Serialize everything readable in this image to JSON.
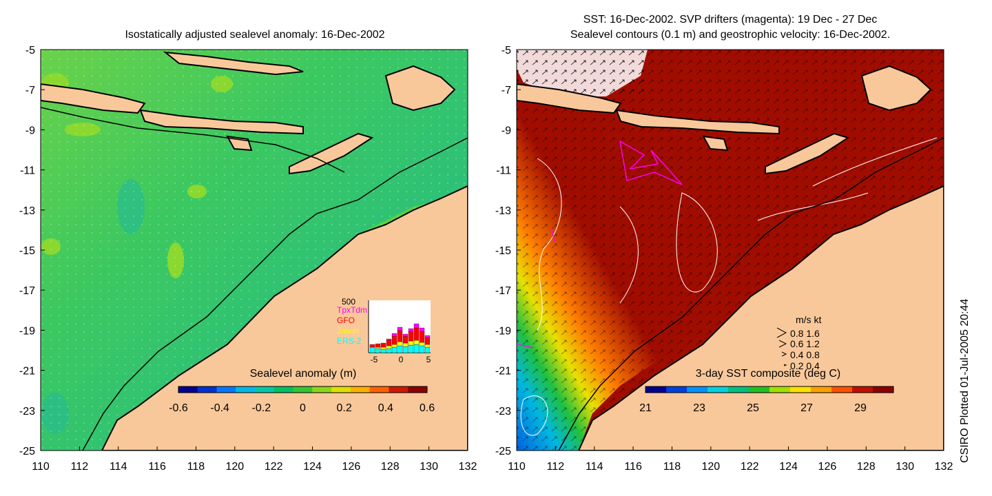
{
  "left_panel": {
    "title": "Isostatically adjusted sealevel anomaly: 16-Dec-2002",
    "colorbar": {
      "label": "Sealevel anomaly (m)",
      "ticks": [
        "-0.6",
        "-0.4",
        "-0.2",
        "0",
        "0.2",
        "0.4",
        "0.6"
      ],
      "colors": [
        "#00008f",
        "#0030d0",
        "#0078ff",
        "#00b8e8",
        "#00c8a8",
        "#00c060",
        "#30c830",
        "#88d818",
        "#e0e000",
        "#ffb000",
        "#ff6000",
        "#d01800",
        "#8b0000"
      ]
    },
    "inset": {
      "ymax_label": "500",
      "legend": [
        "TpxTdm",
        "GFO",
        "Jason",
        "ERS-2"
      ],
      "legend_colors": [
        "#ff00ff",
        "#ff0000",
        "#ffff00",
        "#00ffff"
      ],
      "x_ticks": [
        "-5",
        "0",
        "5"
      ]
    }
  },
  "right_panel": {
    "title_line1": "SST: 16-Dec-2002. SVP drifters (magenta): 19 Dec - 27 Dec",
    "title_line2": "Sealevel contours (0.1 m) and geostrophic velocity: 16-Dec-2002.",
    "colorbar": {
      "label": "3-day SST composite (deg C)",
      "ticks": [
        "21",
        "23",
        "25",
        "27",
        "29"
      ],
      "colors": [
        "#00008f",
        "#0040e0",
        "#0090ff",
        "#00d0e0",
        "#00c080",
        "#20c020",
        "#a0e000",
        "#ffe000",
        "#ffa000",
        "#ff5000",
        "#c01000",
        "#8b0000"
      ]
    },
    "velocity_legend": {
      "header": "m/s  kt",
      "rows": [
        "0.8  1.6",
        "0.6  1.2",
        "0.4  0.8",
        "0.2  0.4"
      ]
    }
  },
  "axes": {
    "y_ticks": [
      "-5",
      "-7",
      "-9",
      "-11",
      "-13",
      "-15",
      "-17",
      "-19",
      "-21",
      "-23",
      "-25"
    ],
    "x_ticks": [
      "110",
      "112",
      "114",
      "116",
      "118",
      "120",
      "122",
      "124",
      "126",
      "128",
      "130",
      "132"
    ]
  },
  "credit": "CSIRO Plotted 01-Jul-2005 20:44",
  "colors": {
    "land": "#f9c89a",
    "ocean_shallow": "#44c844",
    "ocean_deep": "#2cc078",
    "sst_hot": "#a00d00",
    "drifter": "#ff00ff"
  }
}
